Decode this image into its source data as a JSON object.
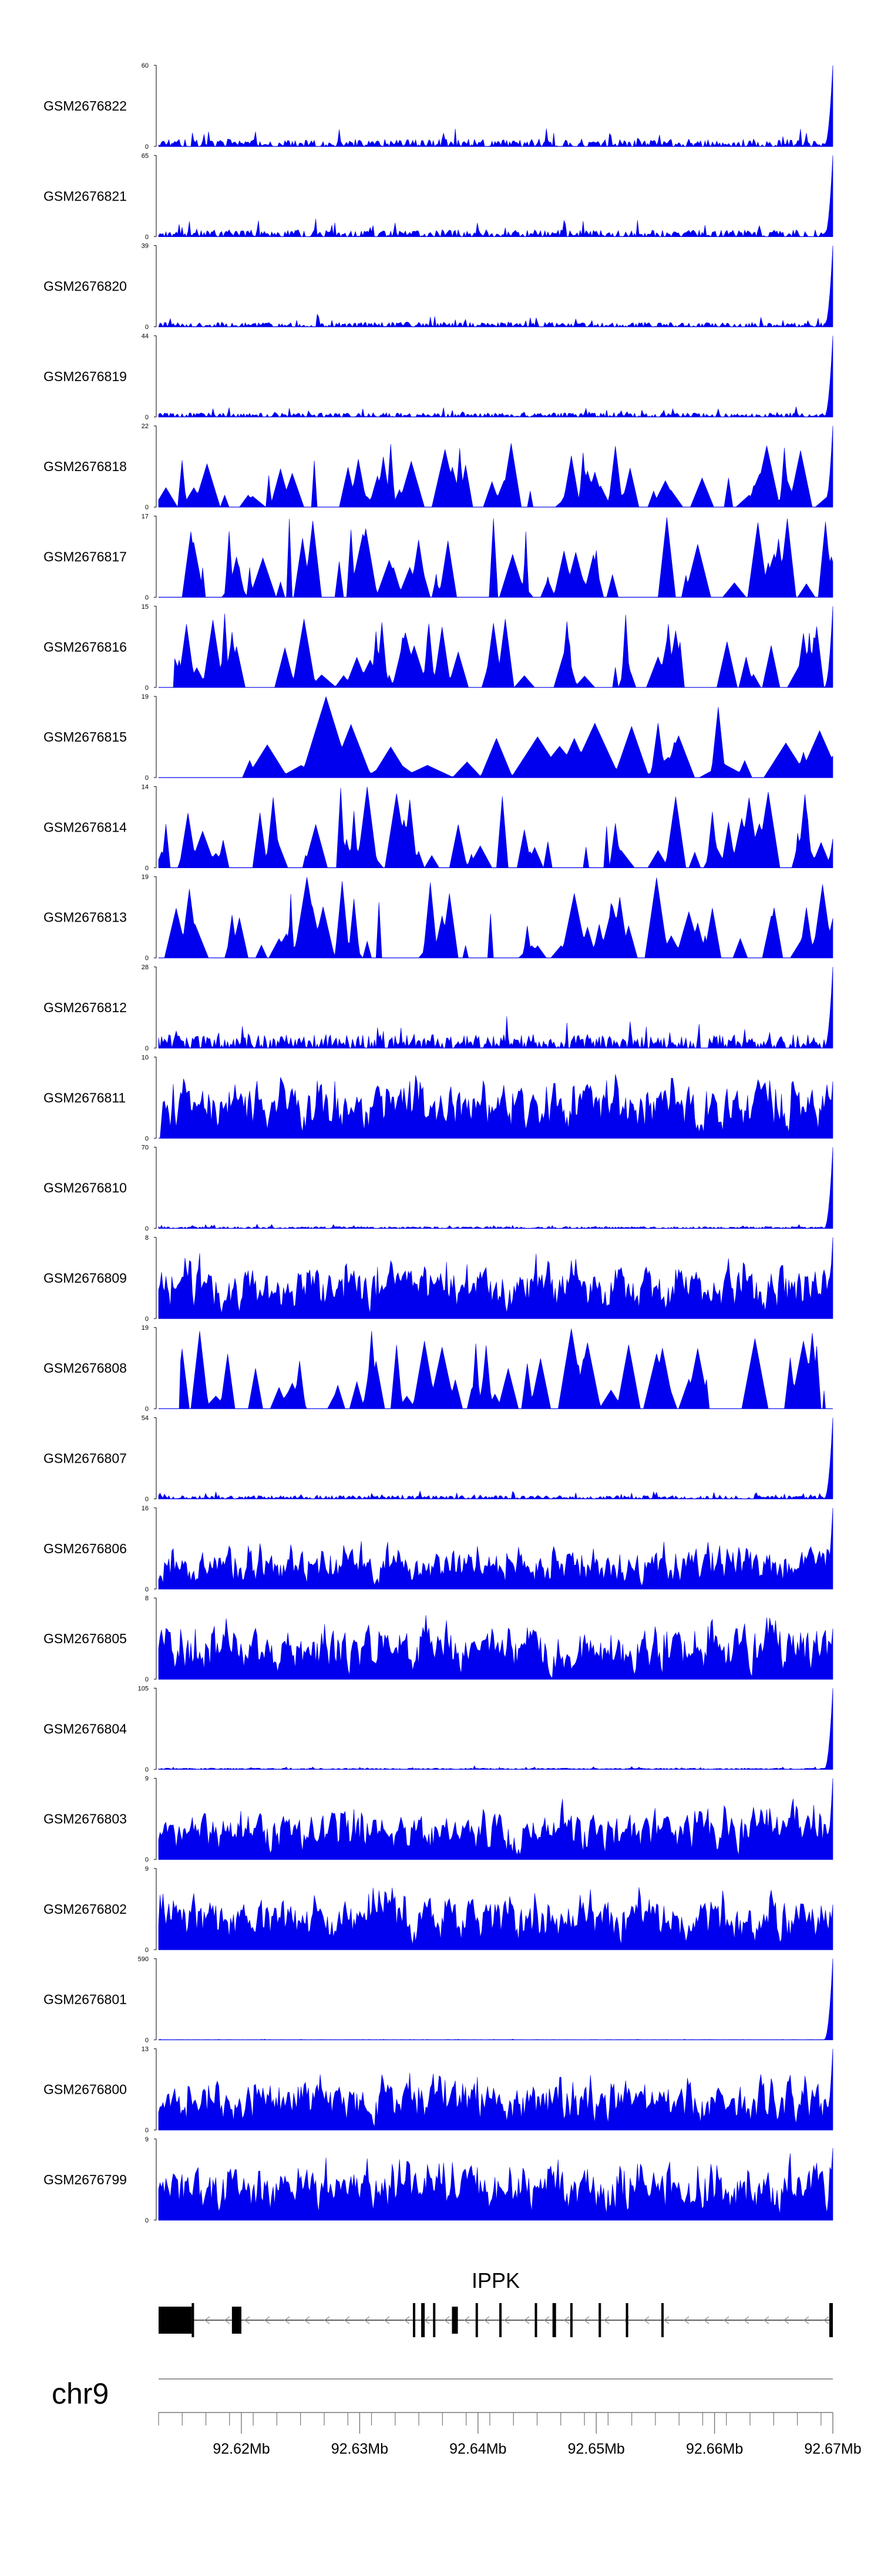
{
  "chart_data": {
    "type": "area",
    "x_unit": "Mb",
    "xlim": [
      92.613,
      92.67
    ],
    "fill_color": "#0000ee",
    "axis_color": "#000000",
    "tracks": [
      {
        "name": "GSM2676822",
        "ymax": "60",
        "ymin": "0",
        "pattern": "dense-low",
        "end_peak": 60,
        "tallest": 10,
        "gaps": []
      },
      {
        "name": "GSM2676821",
        "ymax": "65",
        "ymin": "0",
        "pattern": "dense-low",
        "end_peak": 65,
        "tallest": 10,
        "gaps": []
      },
      {
        "name": "GSM2676820",
        "ymax": "39",
        "ymin": "0",
        "pattern": "dense-low",
        "end_peak": 39,
        "tallest": 4,
        "gaps": []
      },
      {
        "name": "GSM2676819",
        "ymax": "44",
        "ymin": "0",
        "pattern": "dense-low",
        "end_peak": 44,
        "tallest": 4,
        "gaps": []
      },
      {
        "name": "GSM2676818",
        "ymax": "22",
        "ymin": "0",
        "pattern": "spiky",
        "end_peak": 22,
        "tallest": 18,
        "gaps": []
      },
      {
        "name": "GSM2676817",
        "ymax": "17",
        "ymin": "0",
        "pattern": "spiky",
        "end_peak": 6,
        "tallest": 17,
        "gaps": [
          [
            92.613,
            92.6148
          ]
        ]
      },
      {
        "name": "GSM2676816",
        "ymax": "15",
        "ymin": "0",
        "pattern": "spiky",
        "end_peak": 15,
        "tallest": 14,
        "gaps": [
          [
            92.613,
            92.6143
          ]
        ]
      },
      {
        "name": "GSM2676815",
        "ymax": "19",
        "ymin": "0",
        "pattern": "sparse-triangles",
        "end_peak": 5,
        "tallest": 19,
        "gaps": [
          [
            92.613,
            92.6178
          ]
        ]
      },
      {
        "name": "GSM2676814",
        "ymax": "14",
        "ymin": "0",
        "pattern": "spiky",
        "end_peak": 5,
        "tallest": 14,
        "gaps": []
      },
      {
        "name": "GSM2676813",
        "ymax": "19",
        "ymin": "0",
        "pattern": "spiky",
        "end_peak": 4,
        "tallest": 19,
        "gaps": []
      },
      {
        "name": "GSM2676812",
        "ymax": "28",
        "ymin": "0",
        "pattern": "dense-low",
        "end_peak": 28,
        "tallest": 9,
        "gaps": []
      },
      {
        "name": "GSM2676811",
        "ymax": "10",
        "ymin": "0",
        "pattern": "dense-high",
        "end_peak": 7,
        "tallest": 10,
        "gaps": []
      },
      {
        "name": "GSM2676810",
        "ymax": "70",
        "ymin": "0",
        "pattern": "dense-low",
        "end_peak": 70,
        "tallest": 3,
        "gaps": []
      },
      {
        "name": "GSM2676809",
        "ymax": "8",
        "ymin": "0",
        "pattern": "dense-high",
        "end_peak": 8,
        "tallest": 8,
        "gaps": []
      },
      {
        "name": "GSM2676808",
        "ymax": "19",
        "ymin": "0",
        "pattern": "spiky",
        "end_peak": 2,
        "tallest": 19,
        "gaps": [
          [
            92.613,
            92.6148
          ],
          [
            92.6693,
            92.67
          ]
        ]
      },
      {
        "name": "GSM2676807",
        "ymax": "54",
        "ymin": "0",
        "pattern": "dense-low",
        "end_peak": 54,
        "tallest": 4,
        "gaps": []
      },
      {
        "name": "GSM2676806",
        "ymax": "16",
        "ymin": "0",
        "pattern": "dense-high",
        "end_peak": 16,
        "tallest": 12,
        "gaps": []
      },
      {
        "name": "GSM2676805",
        "ymax": "8",
        "ymin": "0",
        "pattern": "dense-high",
        "end_peak": 5,
        "tallest": 8,
        "gaps": []
      },
      {
        "name": "GSM2676804",
        "ymax": "105",
        "ymin": "0",
        "pattern": "dense-low",
        "end_peak": 105,
        "tallest": 3,
        "gaps": []
      },
      {
        "name": "GSM2676803",
        "ymax": "9",
        "ymin": "0",
        "pattern": "dense-high",
        "end_peak": 9,
        "tallest": 8,
        "gaps": []
      },
      {
        "name": "GSM2676802",
        "ymax": "9",
        "ymin": "0",
        "pattern": "dense-high",
        "end_peak": 5,
        "tallest": 9,
        "gaps": []
      },
      {
        "name": "GSM2676801",
        "ymax": "590",
        "ymin": "0",
        "pattern": "dense-low",
        "end_peak": 590,
        "tallest": 3,
        "gaps": []
      },
      {
        "name": "GSM2676800",
        "ymax": "13",
        "ymin": "0",
        "pattern": "dense-high",
        "end_peak": 13,
        "tallest": 12,
        "gaps": []
      },
      {
        "name": "GSM2676799",
        "ymax": "9",
        "ymin": "0",
        "pattern": "dense-high",
        "end_peak": 8,
        "tallest": 9,
        "gaps": []
      }
    ],
    "gene": {
      "name": "IPPK",
      "strand": "-",
      "start": 92.613,
      "end": 92.67,
      "exons": [
        [
          92.613,
          92.6158
        ],
        [
          92.6158,
          92.616
        ],
        [
          92.6192,
          92.62
        ],
        [
          92.6345,
          92.6347
        ],
        [
          92.6352,
          92.6355
        ],
        [
          92.6362,
          92.6364
        ],
        [
          92.6378,
          92.6383
        ],
        [
          92.6398,
          92.64
        ],
        [
          92.6418,
          92.642
        ],
        [
          92.6448,
          92.645
        ],
        [
          92.6463,
          92.6466
        ],
        [
          92.6478,
          92.648
        ],
        [
          92.6502,
          92.6504
        ],
        [
          92.6525,
          92.6527
        ],
        [
          92.6555,
          92.6557
        ],
        [
          92.6697,
          92.67
        ]
      ]
    },
    "chromosome": "chr9",
    "ticks": [
      "92.62Mb",
      "92.63Mb",
      "92.64Mb",
      "92.65Mb",
      "92.66Mb",
      "92.67Mb"
    ],
    "tick_values": [
      92.62,
      92.63,
      92.64,
      92.65,
      92.66,
      92.67
    ],
    "minor_tick_step": 0.002
  }
}
